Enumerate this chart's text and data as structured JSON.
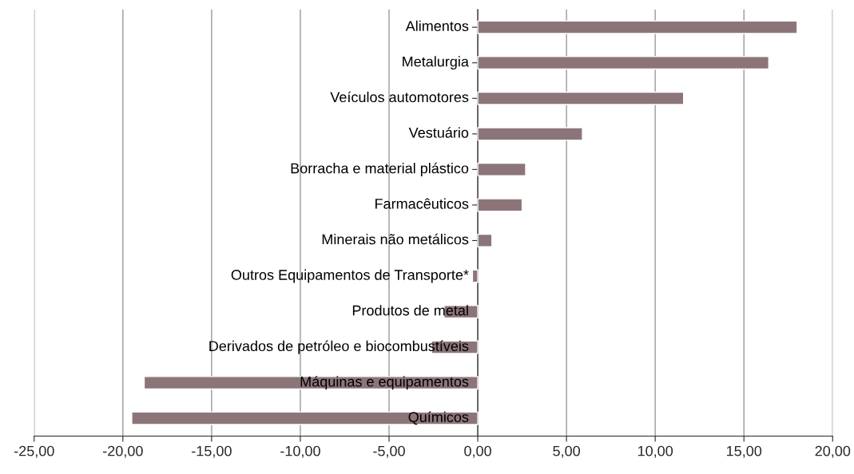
{
  "chart_data": {
    "type": "bar",
    "orientation": "horizontal",
    "categories": [
      "Alimentos",
      "Metalurgia",
      "Veículos automotores",
      "Vestuário",
      "Borracha e material plástico",
      "Farmacêuticos",
      "Minerais não metálicos",
      "Outros Equipamentos de Transporte*",
      "Produtos de metal",
      "Derivados de petróleo e biocombustíveis",
      "Máquinas e equipamentos",
      "Químicos"
    ],
    "values": [
      18.0,
      16.4,
      11.6,
      5.9,
      2.7,
      2.5,
      0.8,
      -0.3,
      -1.9,
      -2.6,
      -18.8,
      -19.5
    ],
    "color": "#8c7579",
    "xlim": [
      -25,
      20
    ],
    "xticks": [
      {
        "value": -25,
        "label": "-25,00"
      },
      {
        "value": -20,
        "label": "-20,00"
      },
      {
        "value": -15,
        "label": "-15,00"
      },
      {
        "value": -10,
        "label": "-10,00"
      },
      {
        "value": -5,
        "label": "-5,00"
      },
      {
        "value": 0,
        "label": "0,00"
      },
      {
        "value": 5,
        "label": "5,00"
      },
      {
        "value": 10,
        "label": "10,00"
      },
      {
        "value": 15,
        "label": "15,00"
      },
      {
        "value": 20,
        "label": "20,00"
      }
    ],
    "grid": "x"
  }
}
